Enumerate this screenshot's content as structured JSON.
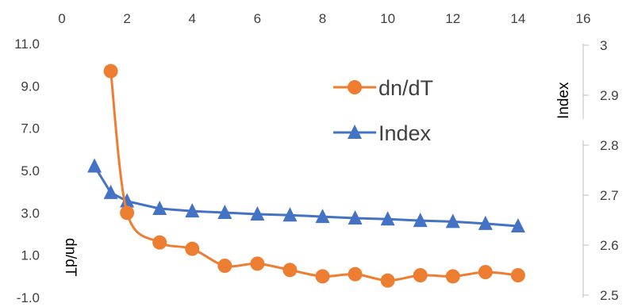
{
  "chart_data": {
    "type": "line",
    "x_axis": {
      "position": "top",
      "min": 0,
      "max": 16,
      "ticks": [
        "0",
        "2",
        "4",
        "6",
        "8",
        "10",
        "12",
        "14",
        "16"
      ]
    },
    "y_left": {
      "title": "dn/dT",
      "min": -1.0,
      "max": 11.0,
      "ticks": [
        "11.0",
        "9.0",
        "7.0",
        "5.0",
        "3.0",
        "1.0",
        "-1.0"
      ]
    },
    "y_right": {
      "title": "Index",
      "min": 2.5,
      "max": 3.0,
      "ticks": [
        "3",
        "2.9",
        "2.8",
        "2.7",
        "2.6",
        "2.5"
      ]
    },
    "grid": false,
    "legend": {
      "position": "top-right",
      "entries": [
        "dn/dT",
        "Index"
      ]
    },
    "series": [
      {
        "name": "dn/dT",
        "axis": "left",
        "color": "#ED7D31",
        "marker": "circle",
        "points": [
          [
            1.5,
            9.7
          ],
          [
            2,
            3.0
          ],
          [
            3,
            1.6
          ],
          [
            4,
            1.3
          ],
          [
            5,
            0.5
          ],
          [
            6,
            0.6
          ],
          [
            7,
            0.3
          ],
          [
            8,
            0.0
          ],
          [
            9,
            0.1
          ],
          [
            10,
            -0.2
          ],
          [
            11,
            0.05
          ],
          [
            12,
            0.0
          ],
          [
            13,
            0.2
          ],
          [
            14,
            0.05
          ]
        ]
      },
      {
        "name": "Index",
        "axis": "right",
        "color": "#4472C4",
        "marker": "triangle",
        "points": [
          [
            1,
            2.758
          ],
          [
            1.5,
            2.705
          ],
          [
            2,
            2.688
          ],
          [
            3,
            2.673
          ],
          [
            4,
            2.668
          ],
          [
            5,
            2.665
          ],
          [
            6,
            2.662
          ],
          [
            7,
            2.66
          ],
          [
            8,
            2.657
          ],
          [
            9,
            2.654
          ],
          [
            10,
            2.652
          ],
          [
            11,
            2.649
          ],
          [
            12,
            2.647
          ],
          [
            13,
            2.643
          ],
          [
            14,
            2.638
          ]
        ]
      }
    ]
  }
}
